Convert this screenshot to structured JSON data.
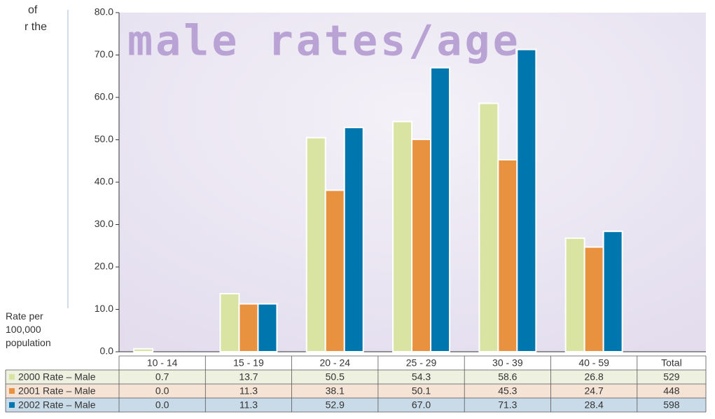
{
  "side_text": [
    "of",
    "r the"
  ],
  "chart_data": {
    "type": "bar",
    "title": "male rates/age",
    "ylabel": "Rate per 100,000 population",
    "categories": [
      "10 - 14",
      "15 - 19",
      "20 - 24",
      "25 - 29",
      "30 - 39",
      "40 - 59"
    ],
    "total_label": "Total",
    "series": [
      {
        "name": "2000 Rate – Male",
        "color": "#d9e4a2",
        "row_color": "#eef0e0",
        "values": [
          0.7,
          13.7,
          50.5,
          54.3,
          58.6,
          26.8
        ],
        "value_labels": [
          "0.7",
          "13.7",
          "50.5",
          "54.3",
          "58.6",
          "26.8"
        ],
        "total": 529
      },
      {
        "name": "2001 Rate – Male",
        "color": "#e8913f",
        "row_color": "#f5e3d5",
        "values": [
          0.0,
          11.3,
          38.1,
          50.1,
          45.3,
          24.7
        ],
        "value_labels": [
          "0.0",
          "11.3",
          "38.1",
          "50.1",
          "45.3",
          "24.7"
        ],
        "total": 448
      },
      {
        "name": "2002 Rate – Male",
        "color": "#0076ae",
        "row_color": "#c9dbe9",
        "values": [
          0.0,
          11.3,
          52.9,
          67.0,
          71.3,
          28.4
        ],
        "value_labels": [
          "0.0",
          "11.3",
          "52.9",
          "67.0",
          "71.3",
          "28.4"
        ],
        "total": 598
      }
    ],
    "ylim": [
      0,
      80
    ],
    "yticks": [
      {
        "value": 0,
        "label": "0.0"
      },
      {
        "value": 10,
        "label": "10.0"
      },
      {
        "value": 20,
        "label": "20.0"
      },
      {
        "value": 30,
        "label": "30.0"
      },
      {
        "value": 40,
        "label": "40.0"
      },
      {
        "value": 50,
        "label": "50.0"
      },
      {
        "value": 60,
        "label": "60.0"
      },
      {
        "value": 70,
        "label": "70.0"
      },
      {
        "value": 80,
        "label": "80.0"
      }
    ],
    "grid": false
  }
}
